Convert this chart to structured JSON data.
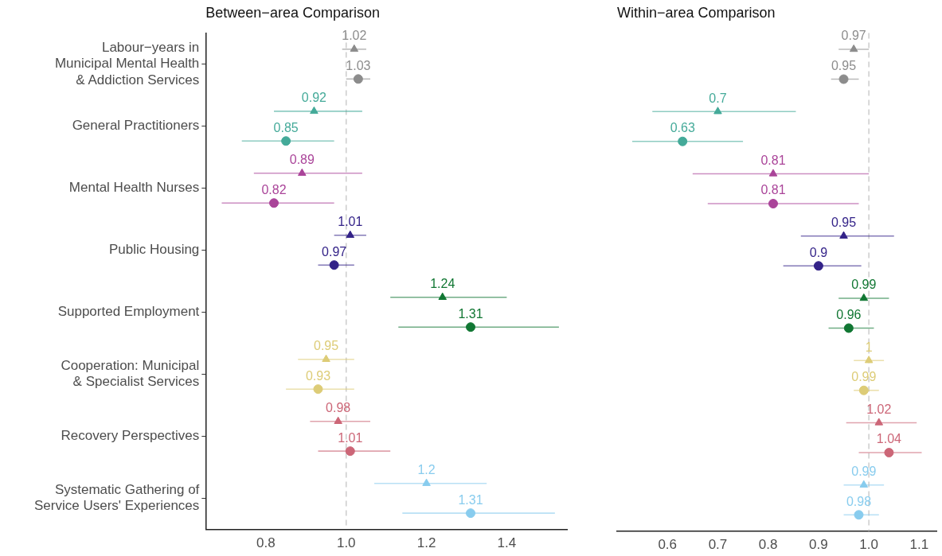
{
  "chart_data": [
    {
      "type": "scatter",
      "orientation": "horizontal",
      "title": "Between−area Comparison",
      "categories": [
        "Labour−years in\nMunicipal Mental Health\n& Addiction Services",
        "General Practitioners",
        "Mental Health Nurses",
        "Public Housing",
        "Supported Employment",
        "Cooperation: Municipal\n& Specialist Services",
        "Recovery Perspectives",
        "Systematic Gathering of\nService Users' Experiences"
      ],
      "series": [
        {
          "marker": "triangle",
          "colors": [
            "#8c8c8c",
            "#44aa99",
            "#aa4499",
            "#332288",
            "#117733",
            "#ddcc77",
            "#cc6677",
            "#88ccee"
          ],
          "values": [
            1.02,
            0.92,
            0.89,
            1.01,
            1.24,
            0.95,
            0.98,
            1.2
          ],
          "errors": [
            [
              0.99,
              1.05
            ],
            [
              0.82,
              1.04
            ],
            [
              0.77,
              1.04
            ],
            [
              0.97,
              1.05
            ],
            [
              1.11,
              1.4
            ],
            [
              0.88,
              1.02
            ],
            [
              0.91,
              1.06
            ],
            [
              1.07,
              1.35
            ]
          ]
        },
        {
          "marker": "circle",
          "colors": [
            "#8c8c8c",
            "#44aa99",
            "#aa4499",
            "#332288",
            "#117733",
            "#ddcc77",
            "#cc6677",
            "#88ccee"
          ],
          "values": [
            1.03,
            0.85,
            0.82,
            0.97,
            1.31,
            0.93,
            1.01,
            1.31
          ],
          "errors": [
            [
              1.0,
              1.06
            ],
            [
              0.74,
              0.97
            ],
            [
              0.69,
              0.97
            ],
            [
              0.93,
              1.02
            ],
            [
              1.13,
              1.53
            ],
            [
              0.85,
              1.02
            ],
            [
              0.93,
              1.11
            ],
            [
              1.14,
              1.52
            ]
          ]
        }
      ],
      "xlim": [
        0.65,
        1.55
      ],
      "xticks": [
        0.8,
        {
          "value": 1,
          "label": "1.0"
        },
        1.2,
        1.4
      ],
      "ref_lines": [
        {
          "axis": "x",
          "value": 1,
          "color": "#cccccc",
          "line_style": "dashed"
        }
      ],
      "data_labels": true,
      "grid": false,
      "legend": false
    },
    {
      "type": "scatter",
      "orientation": "horizontal",
      "title": "Within−area Comparison",
      "categories": [
        null,
        null,
        null,
        null,
        null,
        null,
        null,
        null
      ],
      "series": [
        {
          "marker": "triangle",
          "colors": [
            "#8c8c8c",
            "#44aa99",
            "#aa4499",
            "#332288",
            "#117733",
            "#ddcc77",
            "#cc6677",
            "#88ccee"
          ],
          "values": [
            0.97,
            0.7,
            0.81,
            0.95,
            0.99,
            1,
            1.02,
            0.99
          ],
          "errors": [
            [
              0.94,
              1.0
            ],
            [
              0.57,
              0.855
            ],
            [
              0.65,
              1.0
            ],
            [
              0.865,
              1.05
            ],
            [
              0.94,
              1.04
            ],
            [
              0.97,
              1.03
            ],
            [
              0.955,
              1.095
            ],
            [
              0.95,
              1.03
            ]
          ]
        },
        {
          "marker": "circle",
          "colors": [
            "#8c8c8c",
            "#44aa99",
            "#aa4499",
            "#332288",
            "#117733",
            "#ddcc77",
            "#cc6677",
            "#88ccee"
          ],
          "values": [
            0.95,
            0.63,
            0.81,
            0.9,
            0.96,
            0.99,
            1.04,
            0.98
          ],
          "errors": [
            [
              0.925,
              0.98
            ],
            [
              0.53,
              0.75
            ],
            [
              0.68,
              0.98
            ],
            [
              0.83,
              0.985
            ],
            [
              0.92,
              1.01
            ],
            [
              0.97,
              1.02
            ],
            [
              0.98,
              1.105
            ],
            [
              0.95,
              1.02
            ]
          ]
        }
      ],
      "xlim": [
        0.5,
        1.135
      ],
      "xticks": [
        0.6,
        0.7,
        0.8,
        0.9,
        {
          "value": 1,
          "label": "1.0"
        },
        1.1
      ],
      "ref_lines": [
        {
          "axis": "x",
          "value": 1,
          "color": "#cccccc",
          "line_style": "dashed"
        }
      ],
      "data_labels": true,
      "grid": false,
      "legend": false,
      "tick_labels": "x"
    }
  ]
}
